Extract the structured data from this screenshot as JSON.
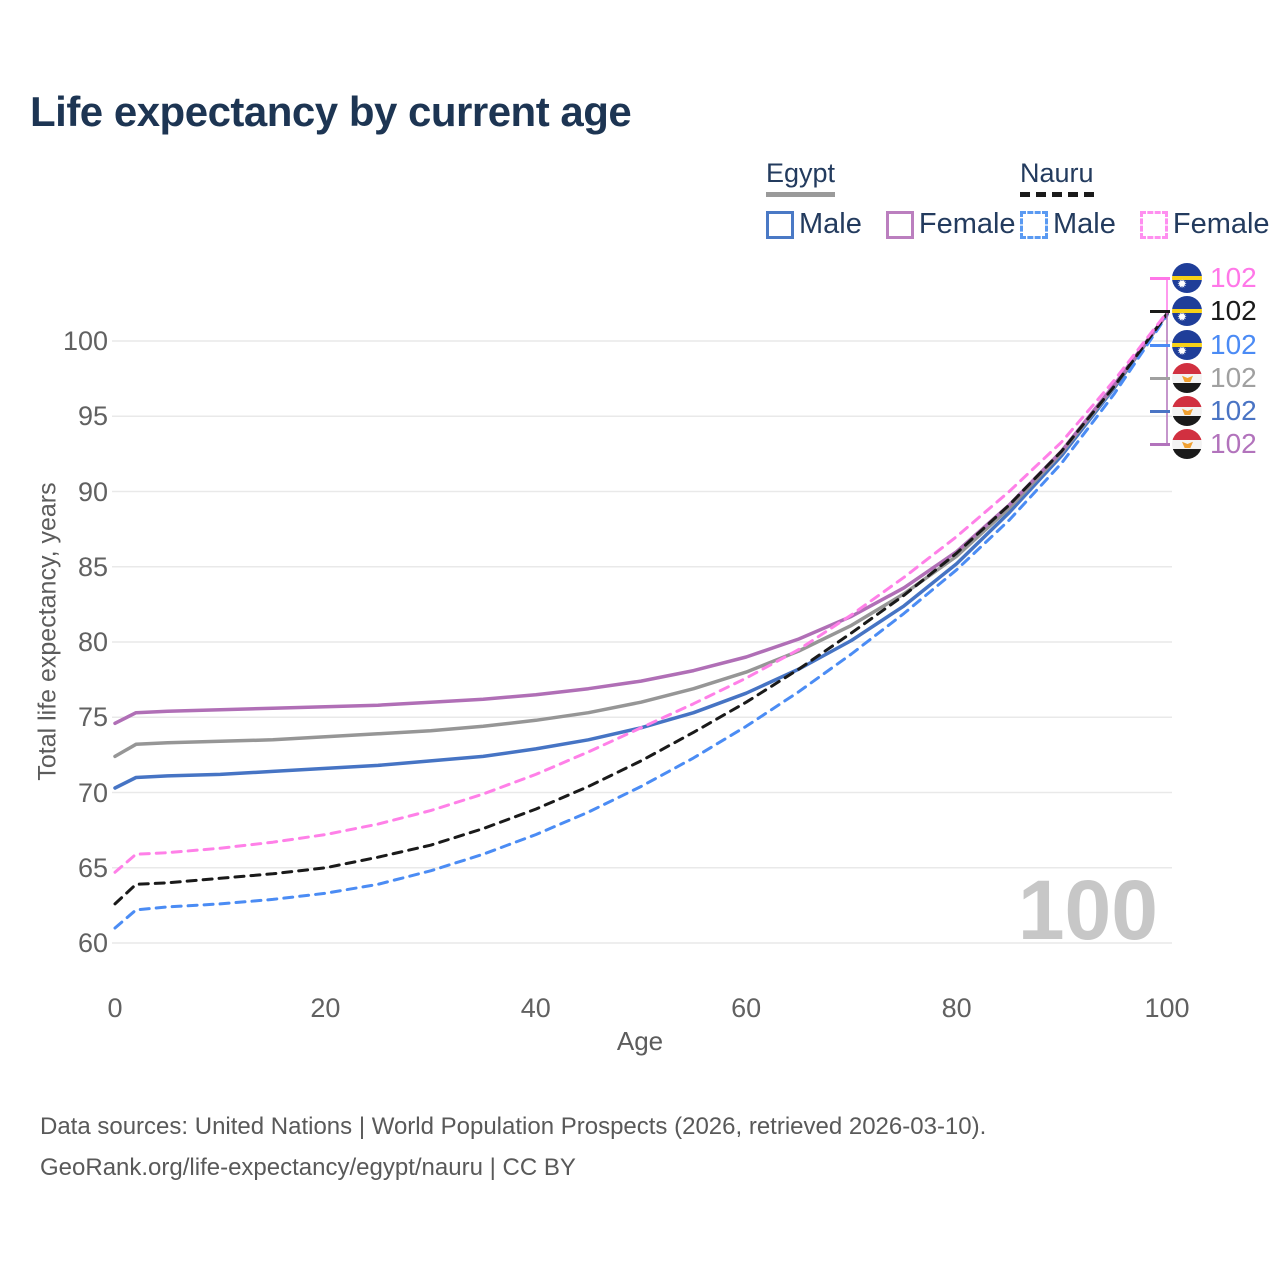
{
  "header": {
    "title": "Life expectancy by current age"
  },
  "legend": {
    "groups": [
      {
        "name": "Egypt",
        "underline": "solid",
        "items": [
          {
            "label": "Male",
            "color": "#4a79c5",
            "dashed": false
          },
          {
            "label": "Female",
            "color": "#bb7fbf",
            "dashed": false
          }
        ]
      },
      {
        "name": "Nauru",
        "underline": "dashed",
        "items": [
          {
            "label": "Male",
            "color": "#5a9af2",
            "dashed": true
          },
          {
            "label": "Female",
            "color": "#ff8ff0",
            "dashed": true
          }
        ]
      }
    ]
  },
  "chart_data": {
    "type": "line",
    "title": "Life expectancy by current age",
    "xlabel": "Age",
    "ylabel": "Total life expectancy, years",
    "xlim": [
      0,
      100
    ],
    "ylim": [
      60,
      102
    ],
    "xticks": [
      0,
      20,
      40,
      60,
      80,
      100
    ],
    "yticks": [
      60,
      65,
      70,
      75,
      80,
      85,
      90,
      95,
      100
    ],
    "grid": "horizontal",
    "x": [
      0,
      2,
      5,
      10,
      15,
      20,
      25,
      30,
      35,
      40,
      45,
      50,
      55,
      60,
      65,
      70,
      75,
      80,
      85,
      90,
      95,
      100
    ],
    "series": [
      {
        "name": "Egypt Male",
        "country": "Egypt",
        "color": "#4674c4",
        "dash": false,
        "values": [
          70.3,
          71.0,
          71.1,
          71.2,
          71.4,
          71.6,
          71.8,
          72.1,
          72.4,
          72.9,
          73.5,
          74.3,
          75.3,
          76.6,
          78.2,
          80.1,
          82.4,
          85.2,
          88.6,
          92.4,
          96.9,
          101.8
        ]
      },
      {
        "name": "Egypt",
        "country": "Egypt",
        "color": "#969696",
        "dash": false,
        "values": [
          72.4,
          73.2,
          73.3,
          73.4,
          73.5,
          73.7,
          73.9,
          74.1,
          74.4,
          74.8,
          75.3,
          76.0,
          76.9,
          78.0,
          79.4,
          81.1,
          83.2,
          85.7,
          88.9,
          92.6,
          97.0,
          101.8
        ]
      },
      {
        "name": "Egypt Female",
        "country": "Egypt",
        "color": "#b06fb6",
        "dash": false,
        "values": [
          74.6,
          75.3,
          75.4,
          75.5,
          75.6,
          75.7,
          75.8,
          76.0,
          76.2,
          76.5,
          76.9,
          77.4,
          78.1,
          79.0,
          80.2,
          81.7,
          83.6,
          86.0,
          89.1,
          92.7,
          97.1,
          101.8
        ]
      },
      {
        "name": "Nauru Male",
        "country": "Nauru",
        "color": "#4b8cf4",
        "dash": true,
        "values": [
          61.0,
          62.2,
          62.4,
          62.6,
          62.9,
          63.3,
          63.9,
          64.8,
          65.9,
          67.2,
          68.7,
          70.4,
          72.3,
          74.4,
          76.7,
          79.2,
          81.9,
          84.8,
          88.1,
          91.9,
          96.5,
          101.7
        ]
      },
      {
        "name": "Nauru",
        "country": "Nauru",
        "color": "#1a1a1a",
        "dash": true,
        "values": [
          62.6,
          63.9,
          64.0,
          64.3,
          64.6,
          65.0,
          65.7,
          66.5,
          67.6,
          68.9,
          70.4,
          72.1,
          74.0,
          76.0,
          78.2,
          80.6,
          83.1,
          85.9,
          89.1,
          92.7,
          97.0,
          101.8
        ]
      },
      {
        "name": "Nauru Female",
        "country": "Nauru",
        "color": "#ff80e8",
        "dash": true,
        "values": [
          64.7,
          65.9,
          66.0,
          66.3,
          66.7,
          67.2,
          67.9,
          68.8,
          69.9,
          71.2,
          72.7,
          74.3,
          75.9,
          77.6,
          79.5,
          81.8,
          84.3,
          87.0,
          90.0,
          93.3,
          97.4,
          101.9
        ]
      }
    ],
    "end_labels": [
      {
        "series": "Nauru Female",
        "flag": "nauru",
        "value": "102",
        "color": "#ff77e8"
      },
      {
        "series": "Nauru",
        "flag": "nauru",
        "value": "102",
        "color": "#1a1a1a"
      },
      {
        "series": "Nauru Male",
        "flag": "nauru",
        "value": "102",
        "color": "#4b8bf5"
      },
      {
        "series": "Egypt",
        "flag": "egypt",
        "value": "102",
        "color": "#a0a0a0"
      },
      {
        "series": "Egypt Male",
        "flag": "egypt",
        "value": "102",
        "color": "#4a74c4"
      },
      {
        "series": "Egypt Female",
        "flag": "egypt",
        "value": "102",
        "color": "#b273bc"
      }
    ],
    "watermark": "100"
  },
  "footer": {
    "line1": "Data sources: United Nations | World Population Prospects (2026, retrieved 2026-03-10).",
    "line2": "GeoRank.org/life-expectancy/egypt/nauru | CC BY"
  }
}
